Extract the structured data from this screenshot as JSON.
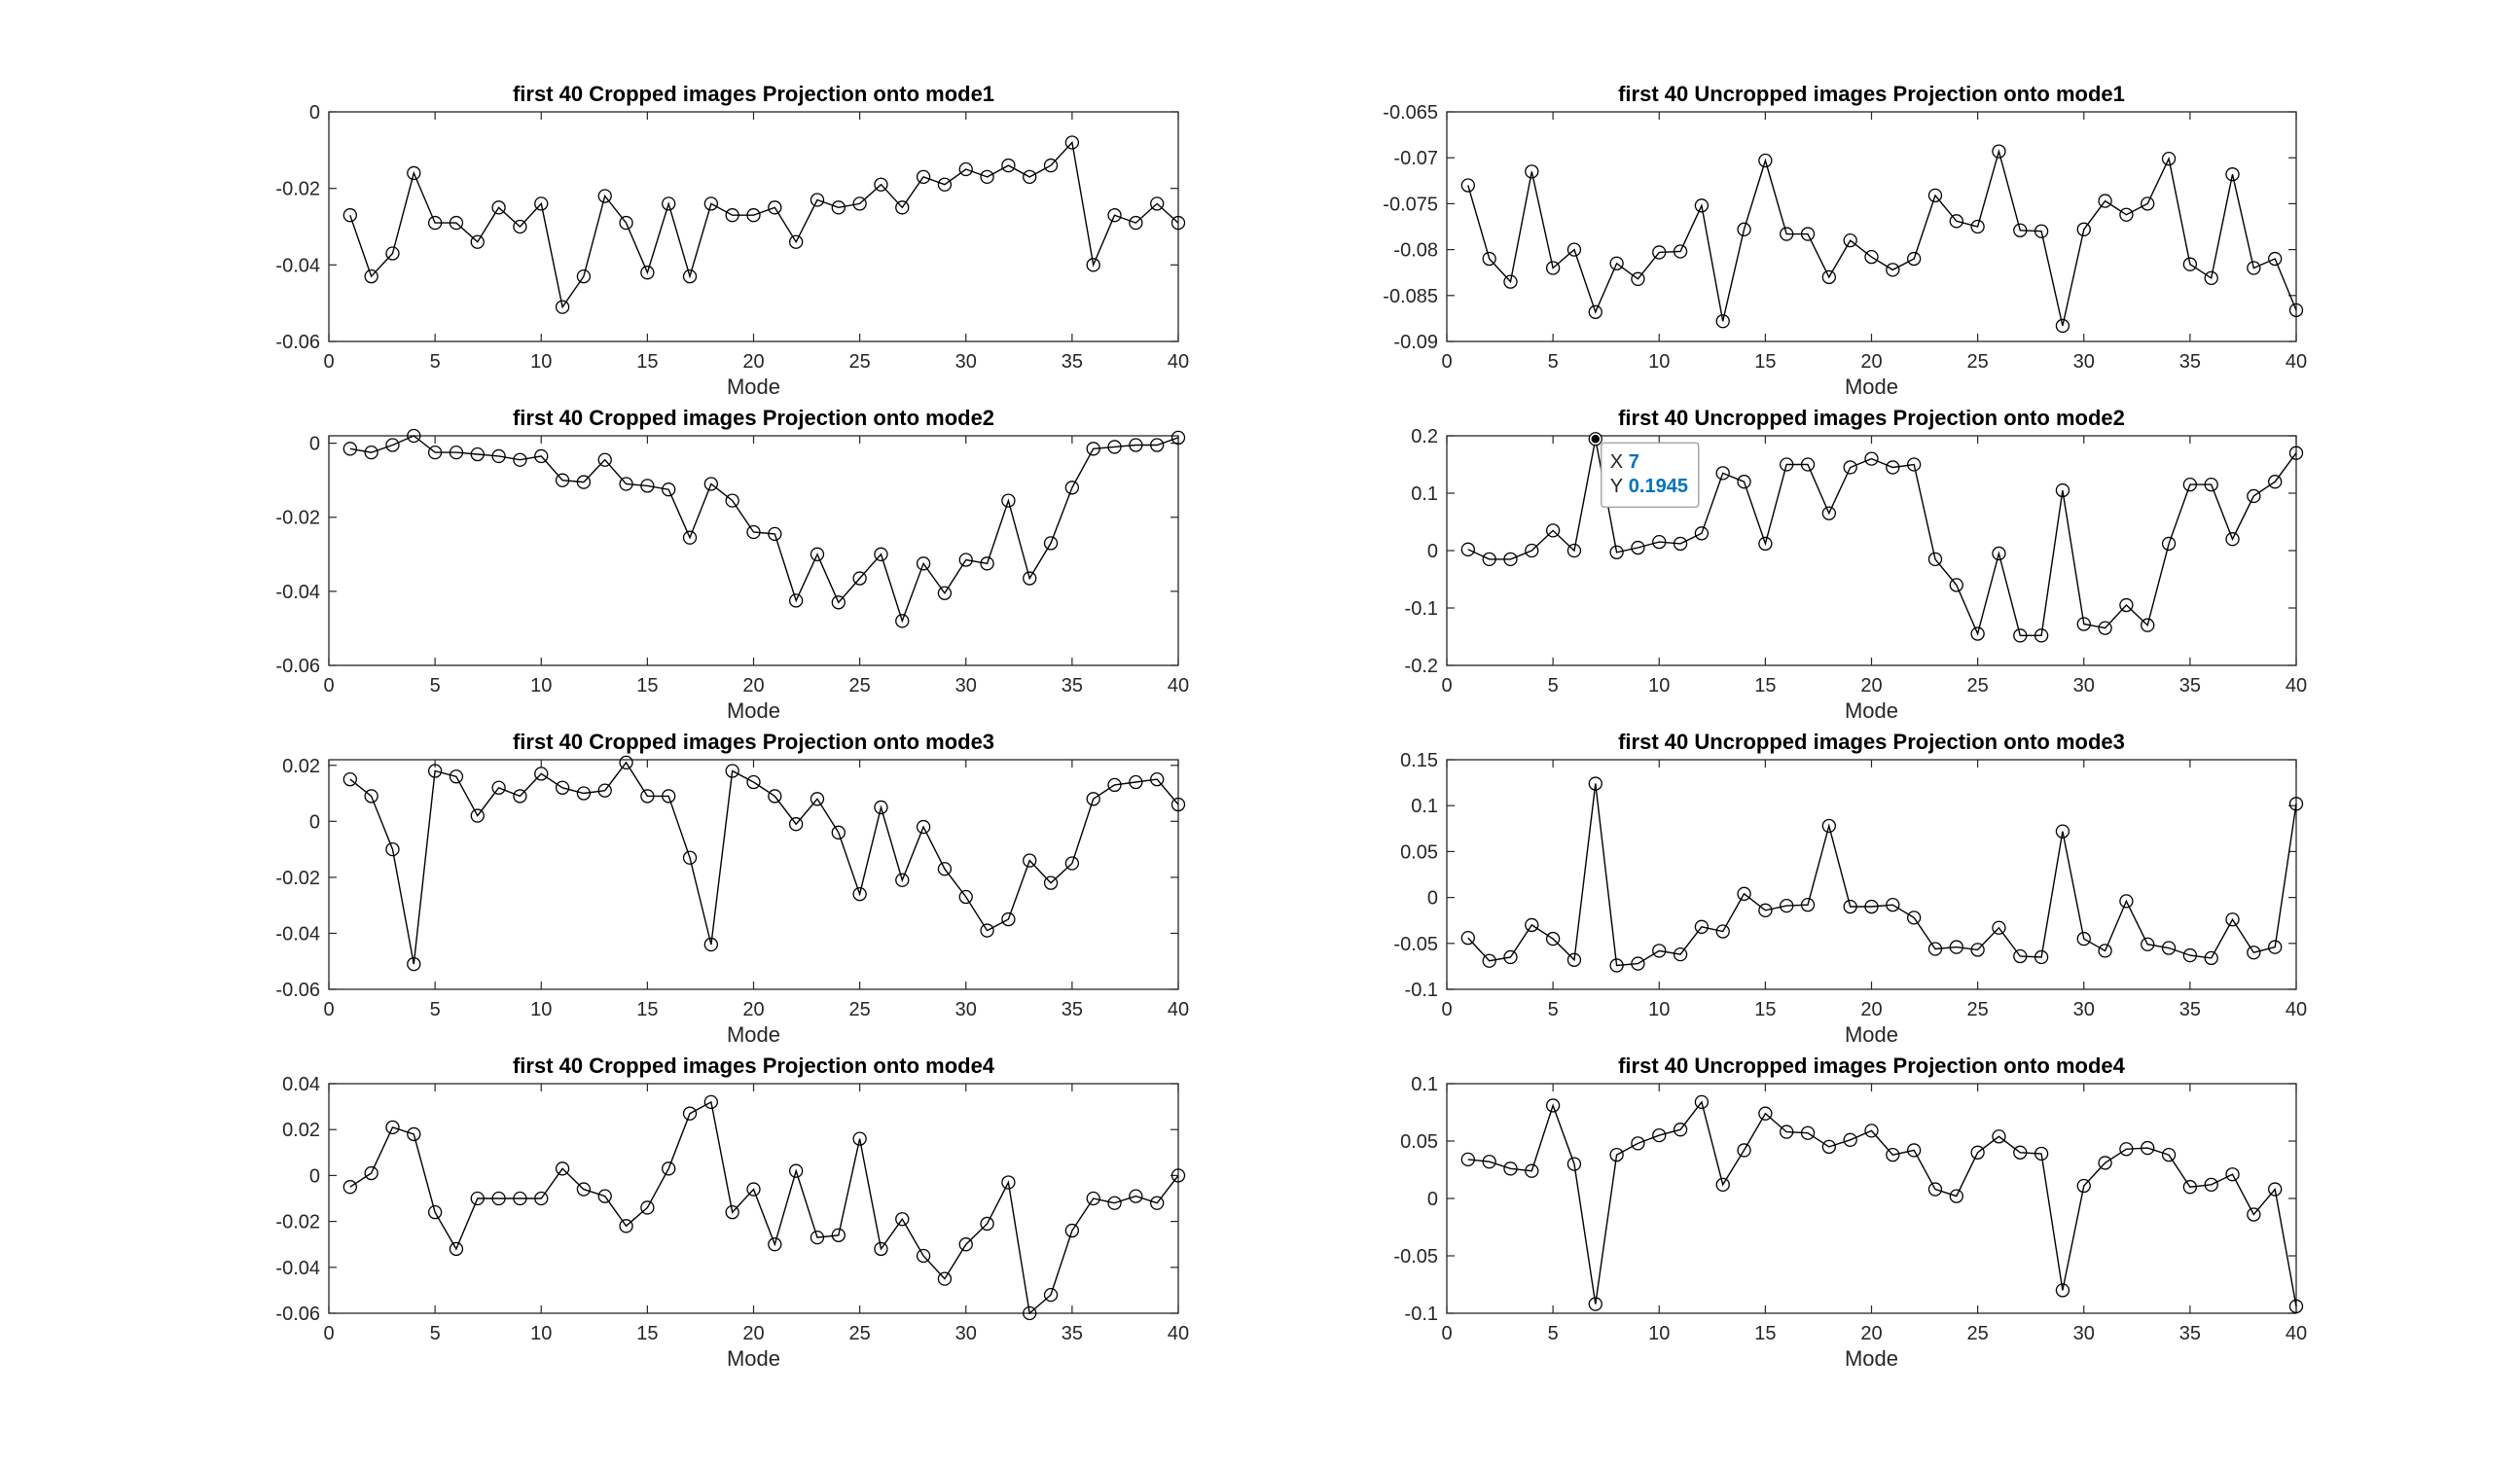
{
  "figure": {
    "background": "#ffffff",
    "axis_color": "#262626",
    "line_color": "#000000",
    "datatip_value_color": "#0072bd"
  },
  "datatip": {
    "x_label": "X",
    "x_value": "7",
    "y_label": "Y",
    "y_value": "0.1945"
  },
  "chart_data": [
    {
      "type": "line",
      "title": "first 40 Cropped images Projection onto mode1",
      "xlabel": "Mode",
      "ylabel": "",
      "xlim": [
        0,
        40
      ],
      "ylim": [
        -0.06,
        0
      ],
      "xticks": [
        0,
        5,
        10,
        15,
        20,
        25,
        30,
        35,
        40
      ],
      "xtick_labels": [
        "0",
        "5",
        "10",
        "15",
        "20",
        "25",
        "30",
        "35",
        "40"
      ],
      "yticks": [
        0,
        -0.02,
        -0.04,
        -0.06
      ],
      "ytick_labels": [
        "0",
        "-0.02",
        "-0.04",
        "-0.06"
      ],
      "grid": false,
      "marker": "circle",
      "x": [
        1,
        2,
        3,
        4,
        5,
        6,
        7,
        8,
        9,
        10,
        11,
        12,
        13,
        14,
        15,
        16,
        17,
        18,
        19,
        20,
        21,
        22,
        23,
        24,
        25,
        26,
        27,
        28,
        29,
        30,
        31,
        32,
        33,
        34,
        35,
        36,
        37,
        38,
        39,
        40
      ],
      "y": [
        -0.027,
        -0.043,
        -0.037,
        -0.016,
        -0.029,
        -0.029,
        -0.034,
        -0.025,
        -0.03,
        -0.024,
        -0.051,
        -0.043,
        -0.022,
        -0.029,
        -0.042,
        -0.024,
        -0.043,
        -0.024,
        -0.027,
        -0.027,
        -0.025,
        -0.034,
        -0.023,
        -0.025,
        -0.024,
        -0.019,
        -0.025,
        -0.017,
        -0.019,
        -0.015,
        -0.017,
        -0.014,
        -0.017,
        -0.014,
        -0.008,
        -0.04,
        -0.027,
        -0.029,
        -0.024,
        -0.029
      ]
    },
    {
      "type": "line",
      "title": "first 40 Uncropped images Projection onto mode1",
      "xlabel": "Mode",
      "ylabel": "",
      "xlim": [
        0,
        40
      ],
      "ylim": [
        -0.09,
        -0.065
      ],
      "xticks": [
        0,
        5,
        10,
        15,
        20,
        25,
        30,
        35,
        40
      ],
      "xtick_labels": [
        "0",
        "5",
        "10",
        "15",
        "20",
        "25",
        "30",
        "35",
        "40"
      ],
      "yticks": [
        -0.065,
        -0.07,
        -0.075,
        -0.08,
        -0.085,
        -0.09
      ],
      "ytick_labels": [
        "-0.065",
        "-0.07",
        "-0.075",
        "-0.08",
        "-0.085",
        "-0.09"
      ],
      "grid": false,
      "marker": "circle",
      "x": [
        1,
        2,
        3,
        4,
        5,
        6,
        7,
        8,
        9,
        10,
        11,
        12,
        13,
        14,
        15,
        16,
        17,
        18,
        19,
        20,
        21,
        22,
        23,
        24,
        25,
        26,
        27,
        28,
        29,
        30,
        31,
        32,
        33,
        34,
        35,
        36,
        37,
        38,
        39,
        40
      ],
      "y": [
        -0.073,
        -0.081,
        -0.0835,
        -0.0715,
        -0.082,
        -0.08,
        -0.0868,
        -0.0815,
        -0.0832,
        -0.0803,
        -0.0802,
        -0.0752,
        -0.0878,
        -0.0778,
        -0.0703,
        -0.0783,
        -0.0783,
        -0.083,
        -0.079,
        -0.0808,
        -0.0822,
        -0.081,
        -0.0741,
        -0.0769,
        -0.0775,
        -0.0693,
        -0.0779,
        -0.078,
        -0.0883,
        -0.0778,
        -0.0747,
        -0.0762,
        -0.075,
        -0.0701,
        -0.0816,
        -0.0831,
        -0.0718,
        -0.082,
        -0.081,
        -0.0866
      ]
    },
    {
      "type": "line",
      "title": "first 40 Cropped images Projection onto mode2",
      "xlabel": "Mode",
      "ylabel": "",
      "xlim": [
        0,
        40
      ],
      "ylim": [
        -0.06,
        0.002
      ],
      "xticks": [
        0,
        5,
        10,
        15,
        20,
        25,
        30,
        35,
        40
      ],
      "xtick_labels": [
        "0",
        "5",
        "10",
        "15",
        "20",
        "25",
        "30",
        "35",
        "40"
      ],
      "yticks": [
        0,
        -0.02,
        -0.04,
        -0.06
      ],
      "ytick_labels": [
        "0",
        "-0.02",
        "-0.04",
        "-0.06"
      ],
      "grid": false,
      "marker": "circle",
      "x": [
        1,
        2,
        3,
        4,
        5,
        6,
        7,
        8,
        9,
        10,
        11,
        12,
        13,
        14,
        15,
        16,
        17,
        18,
        19,
        20,
        21,
        22,
        23,
        24,
        25,
        26,
        27,
        28,
        29,
        30,
        31,
        32,
        33,
        34,
        35,
        36,
        37,
        38,
        39,
        40
      ],
      "y": [
        -0.0015,
        -0.0025,
        -0.0005,
        0.002,
        -0.0025,
        -0.0025,
        -0.003,
        -0.0035,
        -0.0045,
        -0.0035,
        -0.01,
        -0.0105,
        -0.0045,
        -0.011,
        -0.0115,
        -0.0125,
        -0.0255,
        -0.011,
        -0.0155,
        -0.024,
        -0.0245,
        -0.0425,
        -0.03,
        -0.043,
        -0.0365,
        -0.03,
        -0.048,
        -0.0325,
        -0.0405,
        -0.0315,
        -0.0325,
        -0.0155,
        -0.0365,
        -0.027,
        -0.012,
        -0.0015,
        -0.001,
        -0.0005,
        -0.0005,
        0.0015
      ]
    },
    {
      "type": "line",
      "title": "first 40 Uncropped images Projection onto mode2",
      "xlabel": "Mode",
      "ylabel": "",
      "xlim": [
        0,
        40
      ],
      "ylim": [
        -0.2,
        0.2
      ],
      "xticks": [
        0,
        5,
        10,
        15,
        20,
        25,
        30,
        35,
        40
      ],
      "xtick_labels": [
        "0",
        "5",
        "10",
        "15",
        "20",
        "25",
        "30",
        "35",
        "40"
      ],
      "yticks": [
        0.2,
        0.1,
        0,
        -0.1,
        -0.2
      ],
      "ytick_labels": [
        "0.2",
        "0.1",
        "0",
        "-0.1",
        "-0.2"
      ],
      "grid": false,
      "marker": "circle",
      "x": [
        1,
        2,
        3,
        4,
        5,
        6,
        7,
        8,
        9,
        10,
        11,
        12,
        13,
        14,
        15,
        16,
        17,
        18,
        19,
        20,
        21,
        22,
        23,
        24,
        25,
        26,
        27,
        28,
        29,
        30,
        31,
        32,
        33,
        34,
        35,
        36,
        37,
        38,
        39,
        40
      ],
      "y": [
        0.002,
        -0.015,
        -0.015,
        0.0,
        0.035,
        0.0,
        0.1945,
        -0.003,
        0.005,
        0.015,
        0.012,
        0.03,
        0.135,
        0.12,
        0.012,
        0.15,
        0.15,
        0.065,
        0.145,
        0.16,
        0.145,
        0.15,
        -0.015,
        -0.06,
        -0.145,
        -0.005,
        -0.148,
        -0.148,
        0.105,
        -0.128,
        -0.135,
        -0.095,
        -0.13,
        0.012,
        0.115,
        0.115,
        0.02,
        0.095,
        0.12,
        0.17
      ]
    },
    {
      "type": "line",
      "title": "first 40 Cropped images Projection onto mode3",
      "xlabel": "Mode",
      "ylabel": "",
      "xlim": [
        0,
        40
      ],
      "ylim": [
        -0.06,
        0.022
      ],
      "xticks": [
        0,
        5,
        10,
        15,
        20,
        25,
        30,
        35,
        40
      ],
      "xtick_labels": [
        "0",
        "5",
        "10",
        "15",
        "20",
        "25",
        "30",
        "35",
        "40"
      ],
      "yticks": [
        0.02,
        0,
        -0.02,
        -0.04,
        -0.06
      ],
      "ytick_labels": [
        "0.02",
        "0",
        "-0.02",
        "-0.04",
        "-0.06"
      ],
      "grid": false,
      "marker": "circle",
      "x": [
        1,
        2,
        3,
        4,
        5,
        6,
        7,
        8,
        9,
        10,
        11,
        12,
        13,
        14,
        15,
        16,
        17,
        18,
        19,
        20,
        21,
        22,
        23,
        24,
        25,
        26,
        27,
        28,
        29,
        30,
        31,
        32,
        33,
        34,
        35,
        36,
        37,
        38,
        39,
        40
      ],
      "y": [
        0.015,
        0.009,
        -0.01,
        -0.051,
        0.018,
        0.016,
        0.002,
        0.012,
        0.009,
        0.017,
        0.012,
        0.01,
        0.011,
        0.021,
        0.009,
        0.009,
        -0.013,
        -0.044,
        0.018,
        0.014,
        0.009,
        -0.001,
        0.008,
        -0.004,
        -0.026,
        0.005,
        -0.021,
        -0.002,
        -0.017,
        -0.027,
        -0.039,
        -0.035,
        -0.014,
        -0.022,
        -0.015,
        0.008,
        0.013,
        0.014,
        0.015,
        0.006
      ]
    },
    {
      "type": "line",
      "title": "first 40 Uncropped images Projection onto mode3",
      "xlabel": "Mode",
      "ylabel": "",
      "xlim": [
        0,
        40
      ],
      "ylim": [
        -0.1,
        0.15
      ],
      "xticks": [
        0,
        5,
        10,
        15,
        20,
        25,
        30,
        35,
        40
      ],
      "xtick_labels": [
        "0",
        "5",
        "10",
        "15",
        "20",
        "25",
        "30",
        "35",
        "40"
      ],
      "yticks": [
        0.15,
        0.1,
        0.05,
        0,
        -0.05,
        -0.1
      ],
      "ytick_labels": [
        "0.15",
        "0.1",
        "0.05",
        "0",
        "-0.05",
        "-0.1"
      ],
      "grid": false,
      "marker": "circle",
      "x": [
        1,
        2,
        3,
        4,
        5,
        6,
        7,
        8,
        9,
        10,
        11,
        12,
        13,
        14,
        15,
        16,
        17,
        18,
        19,
        20,
        21,
        22,
        23,
        24,
        25,
        26,
        27,
        28,
        29,
        30,
        31,
        32,
        33,
        34,
        35,
        36,
        37,
        38,
        39,
        40
      ],
      "y": [
        -0.044,
        -0.069,
        -0.065,
        -0.03,
        -0.045,
        -0.068,
        0.124,
        -0.074,
        -0.072,
        -0.058,
        -0.062,
        -0.032,
        -0.037,
        0.004,
        -0.014,
        -0.009,
        -0.008,
        0.078,
        -0.01,
        -0.01,
        -0.008,
        -0.022,
        -0.056,
        -0.054,
        -0.057,
        -0.033,
        -0.064,
        -0.065,
        0.072,
        -0.045,
        -0.058,
        -0.004,
        -0.051,
        -0.055,
        -0.063,
        -0.066,
        -0.024,
        -0.06,
        -0.054,
        0.102
      ]
    },
    {
      "type": "line",
      "title": "first 40 Cropped images Projection onto mode4",
      "xlabel": "Mode",
      "ylabel": "",
      "xlim": [
        0,
        40
      ],
      "ylim": [
        -0.06,
        0.04
      ],
      "xticks": [
        0,
        5,
        10,
        15,
        20,
        25,
        30,
        35,
        40
      ],
      "xtick_labels": [
        "0",
        "5",
        "10",
        "15",
        "20",
        "25",
        "30",
        "35",
        "40"
      ],
      "yticks": [
        0.04,
        0.02,
        0,
        -0.02,
        -0.04,
        -0.06
      ],
      "ytick_labels": [
        "0.04",
        "0.02",
        "0",
        "-0.02",
        "-0.04",
        "-0.06"
      ],
      "grid": false,
      "marker": "circle",
      "x": [
        1,
        2,
        3,
        4,
        5,
        6,
        7,
        8,
        9,
        10,
        11,
        12,
        13,
        14,
        15,
        16,
        17,
        18,
        19,
        20,
        21,
        22,
        23,
        24,
        25,
        26,
        27,
        28,
        29,
        30,
        31,
        32,
        33,
        34,
        35,
        36,
        37,
        38,
        39,
        40
      ],
      "y": [
        -0.005,
        0.001,
        0.021,
        0.018,
        -0.016,
        -0.032,
        -0.01,
        -0.01,
        -0.01,
        -0.01,
        0.003,
        -0.006,
        -0.009,
        -0.022,
        -0.014,
        0.003,
        0.027,
        0.032,
        -0.016,
        -0.006,
        -0.03,
        0.002,
        -0.027,
        -0.026,
        0.016,
        -0.032,
        -0.019,
        -0.035,
        -0.045,
        -0.03,
        -0.021,
        -0.003,
        -0.06,
        -0.052,
        -0.024,
        -0.01,
        -0.012,
        -0.009,
        -0.012,
        0.0
      ]
    },
    {
      "type": "line",
      "title": "first 40 Uncropped images Projection onto mode4",
      "xlabel": "Mode",
      "ylabel": "",
      "xlim": [
        0,
        40
      ],
      "ylim": [
        -0.1,
        0.1
      ],
      "xticks": [
        0,
        5,
        10,
        15,
        20,
        25,
        30,
        35,
        40
      ],
      "xtick_labels": [
        "0",
        "5",
        "10",
        "15",
        "20",
        "25",
        "30",
        "35",
        "40"
      ],
      "yticks": [
        0.1,
        0.05,
        0,
        -0.05,
        -0.1
      ],
      "ytick_labels": [
        "0.1",
        "0.05",
        "0",
        "-0.05",
        "-0.1"
      ],
      "grid": false,
      "marker": "circle",
      "x": [
        1,
        2,
        3,
        4,
        5,
        6,
        7,
        8,
        9,
        10,
        11,
        12,
        13,
        14,
        15,
        16,
        17,
        18,
        19,
        20,
        21,
        22,
        23,
        24,
        25,
        26,
        27,
        28,
        29,
        30,
        31,
        32,
        33,
        34,
        35,
        36,
        37,
        38,
        39,
        40
      ],
      "y": [
        0.034,
        0.032,
        0.026,
        0.024,
        0.081,
        0.03,
        -0.092,
        0.038,
        0.048,
        0.055,
        0.06,
        0.084,
        0.012,
        0.042,
        0.074,
        0.058,
        0.057,
        0.045,
        0.051,
        0.059,
        0.038,
        0.042,
        0.008,
        0.002,
        0.04,
        0.054,
        0.04,
        0.039,
        -0.08,
        0.011,
        0.031,
        0.043,
        0.044,
        0.038,
        0.01,
        0.012,
        0.021,
        -0.014,
        0.008,
        -0.094
      ]
    }
  ]
}
